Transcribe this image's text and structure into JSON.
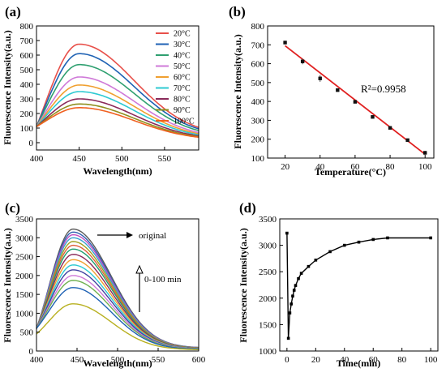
{
  "chart_data": [
    {
      "panel": "(a)",
      "type": "line",
      "xlabel": "Wavelength(nm)",
      "ylabel": "Fluorescence Intensity(a.u.)",
      "xlim": [
        400,
        590
      ],
      "ylim": [
        -50,
        800
      ],
      "xticks": [
        400,
        450,
        500,
        550
      ],
      "yticks": [
        0,
        100,
        200,
        300,
        400,
        500,
        600,
        700,
        800
      ],
      "legend_position": "top-right",
      "peak_x": 450,
      "width_left": 40,
      "width_right": 64,
      "tail_frac": 0.07,
      "series": [
        {
          "name": "20°C",
          "start": 110,
          "peak": 675,
          "color": "#e8504a"
        },
        {
          "name": "30°C",
          "start": 110,
          "peak": 610,
          "color": "#1f62b4"
        },
        {
          "name": "40°C",
          "start": 110,
          "peak": 535,
          "color": "#2fa070"
        },
        {
          "name": "50°C",
          "start": 110,
          "peak": 450,
          "color": "#cf79d8"
        },
        {
          "name": "60°C",
          "start": 110,
          "peak": 395,
          "color": "#f0a030"
        },
        {
          "name": "70°C",
          "start": 110,
          "peak": 350,
          "color": "#2ecad2"
        },
        {
          "name": "80°C",
          "start": 110,
          "peak": 300,
          "color": "#8a2a5a"
        },
        {
          "name": "90°C",
          "start": 110,
          "peak": 265,
          "color": "#8f8f1f"
        },
        {
          "name": "100°C",
          "start": 110,
          "peak": 240,
          "color": "#f06020"
        }
      ]
    },
    {
      "panel": "(b)",
      "type": "scatter",
      "xlabel": "Temperature(°C)",
      "ylabel": "Fluorescence Intensity(a.u.)",
      "xlim": [
        10,
        105
      ],
      "ylim": [
        100,
        800
      ],
      "xticks": [
        20,
        40,
        60,
        80,
        100
      ],
      "yticks": [
        100,
        200,
        300,
        400,
        500,
        600,
        700,
        800
      ],
      "annotation": "R²=0.9958",
      "points": [
        {
          "x": 20,
          "y": 712,
          "err": 10
        },
        {
          "x": 30,
          "y": 612,
          "err": 15
        },
        {
          "x": 40,
          "y": 522,
          "err": 18
        },
        {
          "x": 50,
          "y": 460,
          "err": 8
        },
        {
          "x": 60,
          "y": 398,
          "err": 6
        },
        {
          "x": 70,
          "y": 318,
          "err": 8
        },
        {
          "x": 80,
          "y": 260,
          "err": 6
        },
        {
          "x": 90,
          "y": 195,
          "err": 6
        },
        {
          "x": 100,
          "y": 128,
          "err": 10
        }
      ],
      "fit": {
        "x": [
          20,
          100
        ],
        "y": [
          695,
          120
        ],
        "color": "#e02020"
      }
    },
    {
      "panel": "(c)",
      "type": "line",
      "xlabel": "Wavelength(nm)",
      "ylabel": "Fluorescence Intensity(a.u.)",
      "xlim": [
        400,
        600
      ],
      "ylim": [
        0,
        3500
      ],
      "xticks": [
        400,
        450,
        500,
        550,
        600
      ],
      "yticks": [
        0,
        500,
        1000,
        1500,
        2000,
        2500,
        3000,
        3500
      ],
      "annotations": [
        "original",
        "0-100 min"
      ],
      "peak_x": 445,
      "width_left": 30,
      "width_right": 47,
      "tail_frac": 0.025,
      "series": [
        {
          "start": 580,
          "peak": 3230,
          "color": "#5b5b5b"
        },
        {
          "start": 600,
          "peak": 3150,
          "color": "#2f5fb0"
        },
        {
          "start": 600,
          "peak": 3080,
          "color": "#c050c0"
        },
        {
          "start": 600,
          "peak": 3000,
          "color": "#3aa0d0"
        },
        {
          "start": 600,
          "peak": 2900,
          "color": "#a0a020"
        },
        {
          "start": 600,
          "peak": 2800,
          "color": "#e0603a"
        },
        {
          "start": 600,
          "peak": 2700,
          "color": "#1e9e6e"
        },
        {
          "start": 600,
          "peak": 2560,
          "color": "#8a2a5a"
        },
        {
          "start": 600,
          "peak": 2420,
          "color": "#f0a030"
        },
        {
          "start": 600,
          "peak": 2280,
          "color": "#2ecad2"
        },
        {
          "start": 600,
          "peak": 2150,
          "color": "#4040a0"
        },
        {
          "start": 600,
          "peak": 2000,
          "color": "#cf79d8"
        },
        {
          "start": 600,
          "peak": 1870,
          "color": "#70b050"
        },
        {
          "start": 600,
          "peak": 1680,
          "color": "#1f62b4"
        },
        {
          "start": 450,
          "peak": 1250,
          "color": "#b8b020"
        }
      ]
    },
    {
      "panel": "(d)",
      "type": "line",
      "xlabel": "Time(min)",
      "ylabel": "Fluorescence Intensity(a.u.)",
      "xlim": [
        -5,
        105
      ],
      "ylim": [
        1000,
        3500
      ],
      "xticks": [
        0,
        20,
        40,
        60,
        80,
        100
      ],
      "yticks": [
        1000,
        1500,
        2000,
        2500,
        3000,
        3500
      ],
      "x": [
        0,
        1,
        2,
        3,
        4,
        5,
        6,
        8,
        10,
        15,
        20,
        30,
        40,
        50,
        60,
        70,
        100
      ],
      "y": [
        3230,
        1240,
        1720,
        1890,
        2040,
        2150,
        2240,
        2370,
        2470,
        2600,
        2720,
        2880,
        3000,
        3060,
        3110,
        3140,
        3140
      ]
    }
  ]
}
